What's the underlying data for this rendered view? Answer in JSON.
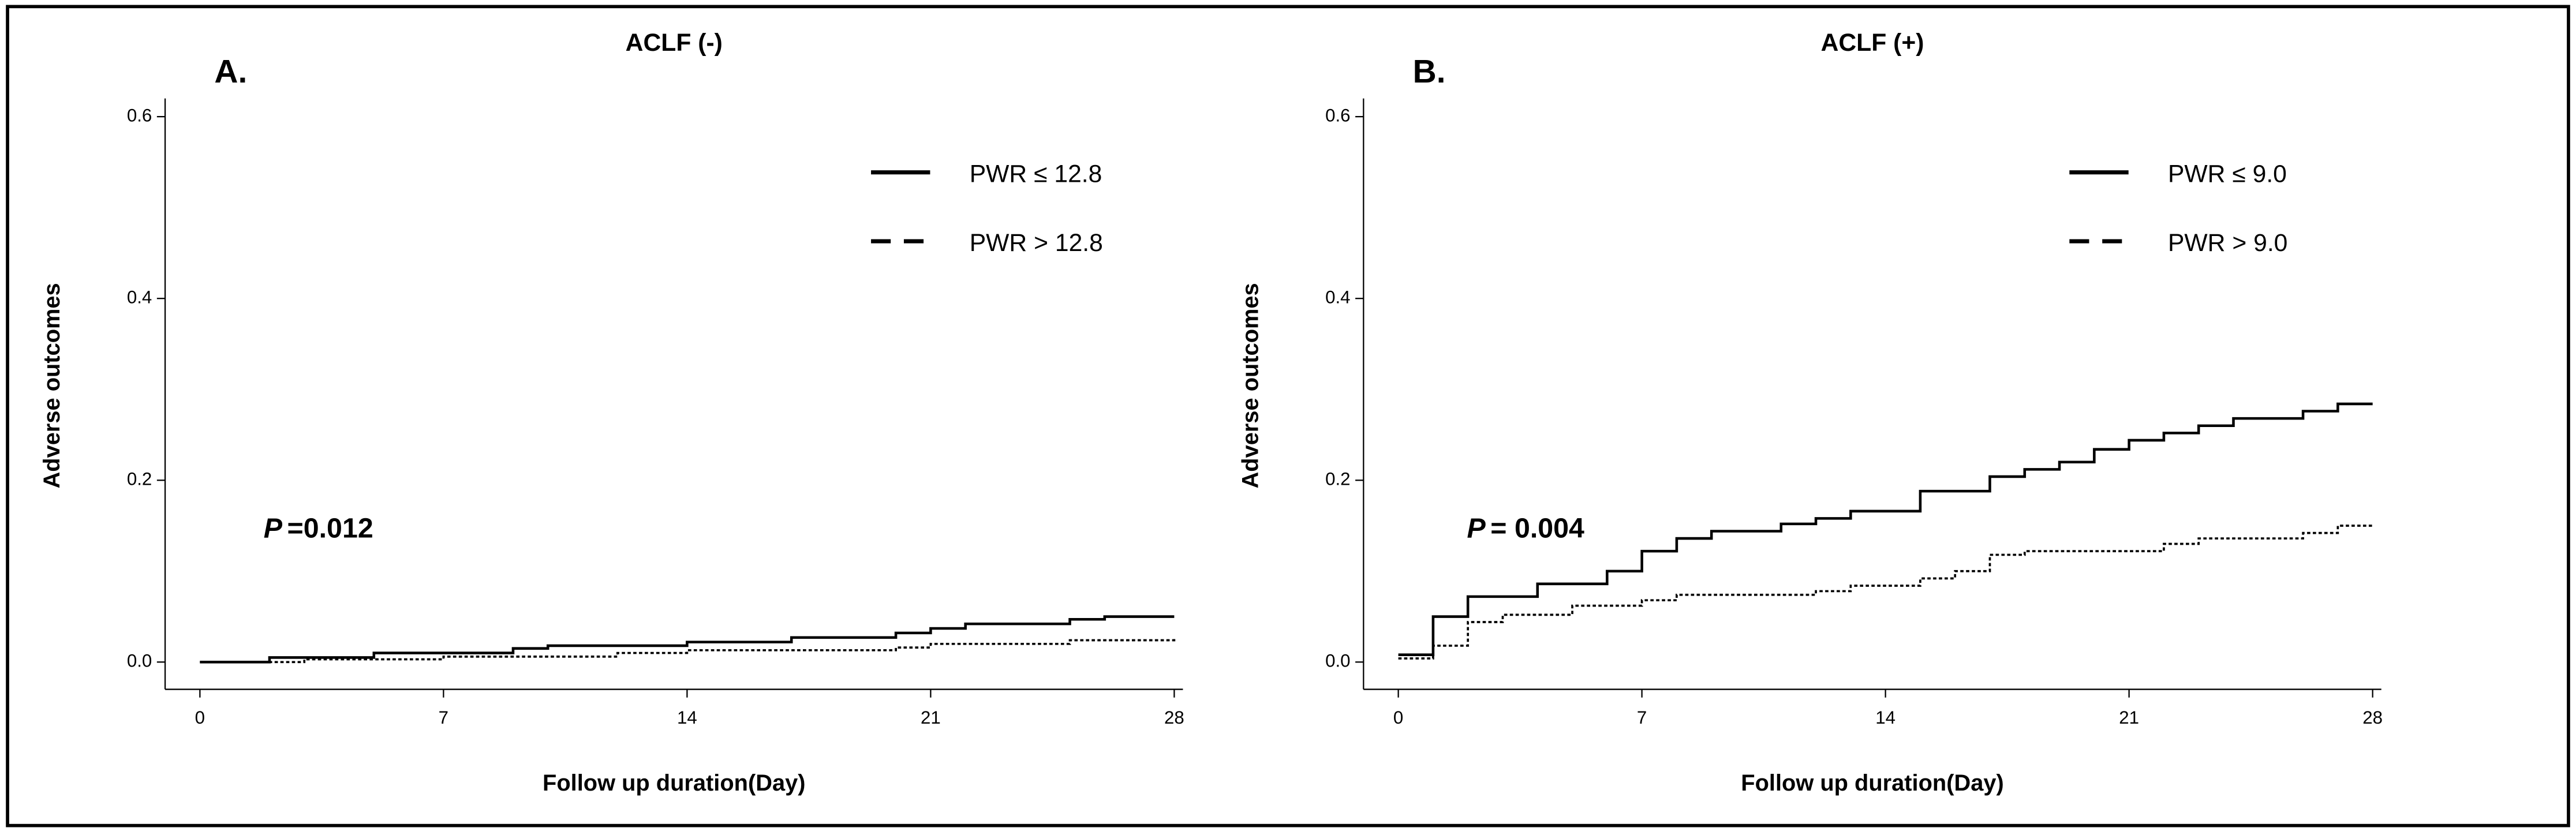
{
  "chart_data": [
    {
      "type": "line",
      "panel_label": "A.",
      "title": "ACLF (-)",
      "x_label": "Follow up duration(Day)",
      "y_label": "Adverse outcomes",
      "annotation": {
        "p_label": "P",
        "p_value": "=0.012"
      },
      "xlim": [
        -1,
        28.25
      ],
      "ylim": [
        -0.03,
        0.62
      ],
      "xticks": [
        0,
        7,
        14,
        21,
        28
      ],
      "yticks": [
        {
          "value": 0,
          "label": "0.0"
        },
        {
          "value": 0.2,
          "label": "0.2"
        },
        {
          "value": 0.4,
          "label": "0.4"
        },
        {
          "value": 0.6,
          "label": "0.6"
        }
      ],
      "legend": "upper right",
      "step": true,
      "series": [
        {
          "name": "PWR ≤ 12.8",
          "color": "#000000",
          "dash": false,
          "x": [
            0,
            2,
            5,
            9,
            10,
            14,
            17,
            20,
            21,
            22,
            25,
            26,
            28
          ],
          "values": [
            0,
            0.005,
            0.01,
            0.015,
            0.018,
            0.022,
            0.027,
            0.032,
            0.037,
            0.042,
            0.047,
            0.05,
            0.05
          ]
        },
        {
          "name": "PWR > 12.8",
          "color": "#000000",
          "dash": true,
          "x": [
            0,
            3,
            7,
            12,
            14,
            20,
            21,
            25,
            28
          ],
          "values": [
            0,
            0.003,
            0.006,
            0.01,
            0.013,
            0.016,
            0.02,
            0.024,
            0.027
          ]
        }
      ]
    },
    {
      "type": "line",
      "panel_label": "B.",
      "title": "ACLF (+)",
      "x_label": "Follow up duration(Day)",
      "y_label": "Adverse outcomes",
      "annotation": {
        "p_label": "P",
        "p_value": "= 0.004"
      },
      "xlim": [
        -1,
        28.25
      ],
      "ylim": [
        -0.03,
        0.62
      ],
      "xticks": [
        0,
        7,
        14,
        21,
        28
      ],
      "yticks": [
        {
          "value": 0,
          "label": "0.0"
        },
        {
          "value": 0.2,
          "label": "0.2"
        },
        {
          "value": 0.4,
          "label": "0.4"
        },
        {
          "value": 0.6,
          "label": "0.6"
        }
      ],
      "legend": "upper right",
      "step": true,
      "series": [
        {
          "name": "PWR ≤ 9.0",
          "color": "#000000",
          "dash": false,
          "x": [
            0,
            1,
            2,
            4,
            6,
            7,
            8,
            9,
            11,
            12,
            13,
            15,
            17,
            18,
            19,
            20,
            21,
            22,
            23,
            24,
            26,
            27,
            28
          ],
          "values": [
            0.008,
            0.05,
            0.072,
            0.086,
            0.1,
            0.122,
            0.136,
            0.144,
            0.152,
            0.158,
            0.166,
            0.188,
            0.204,
            0.212,
            0.22,
            0.234,
            0.244,
            0.252,
            0.26,
            0.268,
            0.276,
            0.284,
            0.284
          ]
        },
        {
          "name": "PWR > 9.0",
          "color": "#000000",
          "dash": true,
          "x": [
            0,
            1,
            2,
            3,
            5,
            7,
            8,
            12,
            13,
            15,
            16,
            17,
            18,
            22,
            23,
            26,
            27,
            28
          ],
          "values": [
            0.004,
            0.018,
            0.044,
            0.052,
            0.062,
            0.068,
            0.074,
            0.078,
            0.084,
            0.092,
            0.1,
            0.118,
            0.122,
            0.13,
            0.136,
            0.142,
            0.15,
            0.15
          ]
        }
      ]
    }
  ]
}
